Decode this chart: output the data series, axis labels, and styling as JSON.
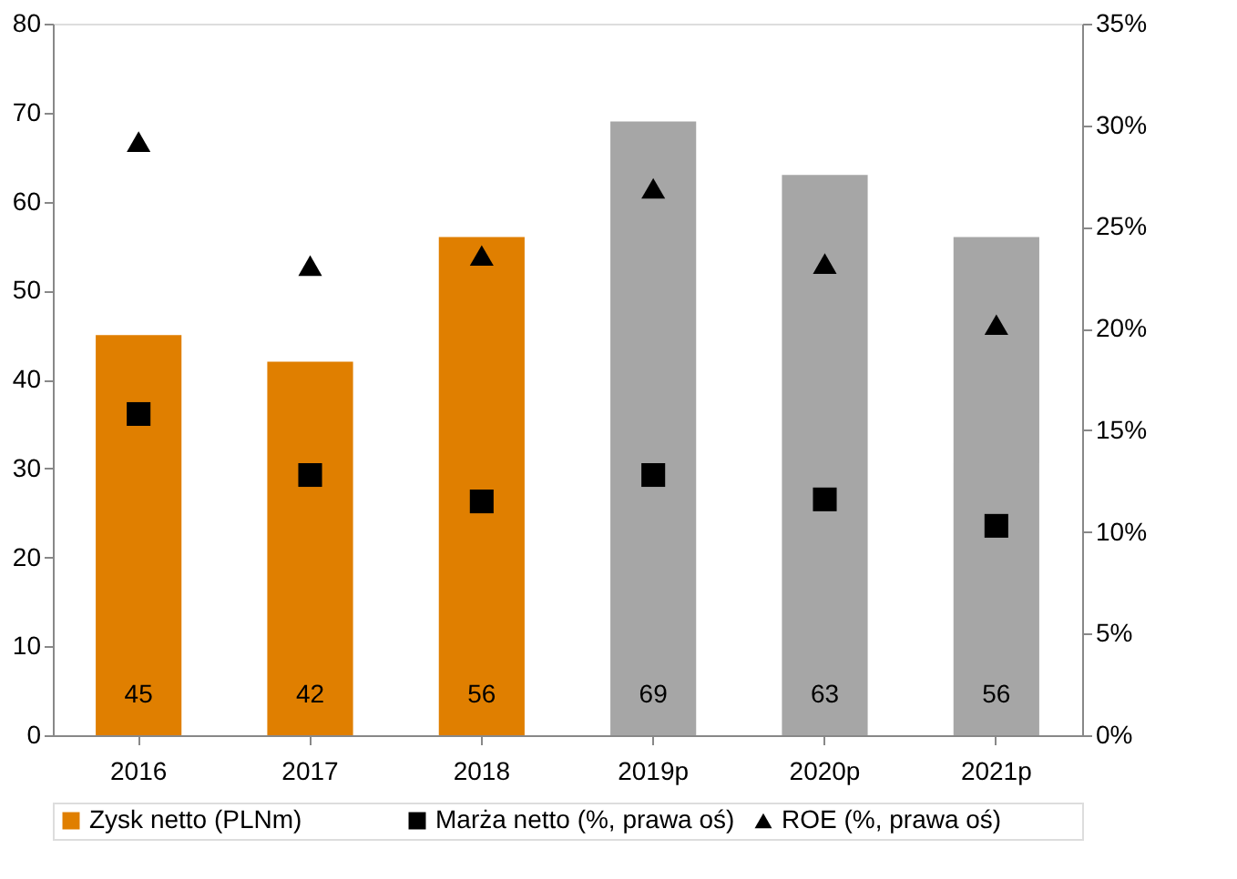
{
  "chart_data": {
    "type": "bar",
    "categories": [
      "2016",
      "2017",
      "2018",
      "2019p",
      "2020p",
      "2021p"
    ],
    "ylim": [
      0,
      80
    ],
    "yticks": [
      0,
      10,
      20,
      30,
      40,
      50,
      60,
      70,
      80
    ],
    "y2lim": [
      0,
      35
    ],
    "y2ticks": [
      {
        "value": 0,
        "label": "0%"
      },
      {
        "value": 5,
        "label": "5%"
      },
      {
        "value": 10,
        "label": "10%"
      },
      {
        "value": 15,
        "label": "15%"
      },
      {
        "value": 20,
        "label": "20%"
      },
      {
        "value": 25,
        "label": "25%"
      },
      {
        "value": 30,
        "label": "30%"
      },
      {
        "value": 35,
        "label": "35%"
      }
    ],
    "grid": false,
    "legend": "bottom",
    "series": [
      {
        "name": "Zysk netto (PLNm)",
        "color": "#e07f00",
        "colors": [
          "#e07f00",
          "#e07f00",
          "#e07f00",
          "#a6a6a6",
          "#a6a6a6",
          "#a6a6a6"
        ],
        "values": [
          45,
          42,
          56,
          69,
          63,
          56
        ],
        "value_labels": [
          "45",
          "42",
          "56",
          "69",
          "63",
          "56"
        ]
      },
      {
        "name": "Marża netto (%, prawa oś)",
        "type": "scatter",
        "axis": "y2",
        "marker": "square",
        "color": "#000000",
        "values": [
          15.8,
          12.8,
          11.5,
          12.8,
          11.6,
          10.3
        ]
      },
      {
        "name": "ROE (%, prawa oś)",
        "type": "scatter",
        "axis": "y2",
        "marker": "triangle",
        "color": "#000000",
        "values": [
          29.2,
          23.1,
          23.6,
          26.9,
          23.2,
          20.2
        ]
      }
    ]
  }
}
